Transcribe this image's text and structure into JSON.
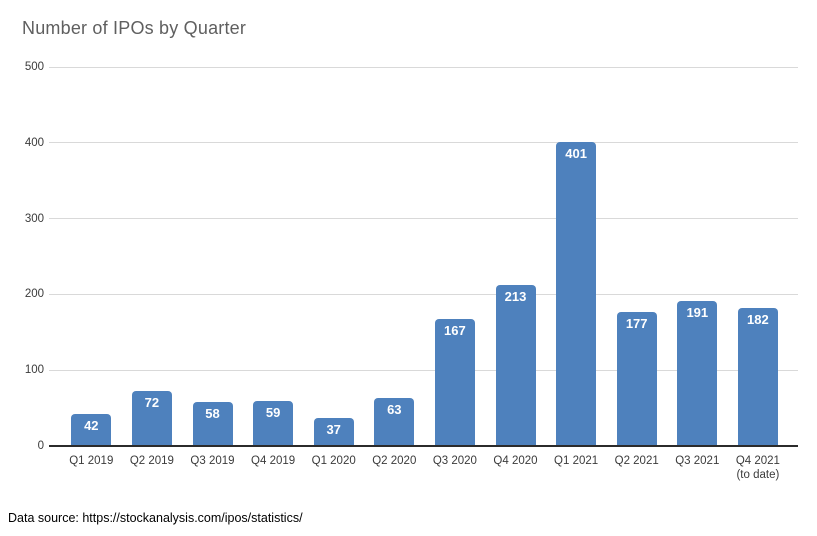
{
  "source_note": "Data source: https://stockanalysis.com/ipos/statistics/",
  "colors": {
    "bar": "#4e81bd",
    "title_text": "#5f5f5f",
    "axis_text": "#3b3b3b",
    "gridline": "#d9d9d9",
    "axis_line": "#2b2b2b",
    "value_label": "#ffffff",
    "background": "#ffffff"
  },
  "chart_data": {
    "type": "bar",
    "title": "Number of IPOs by Quarter",
    "categories": [
      "Q1 2019",
      "Q2 2019",
      "Q3 2019",
      "Q4 2019",
      "Q1 2020",
      "Q2 2020",
      "Q3 2020",
      "Q4 2020",
      "Q1 2021",
      "Q2 2021",
      "Q3 2021",
      "Q4 2021\n(to date)"
    ],
    "values": [
      42,
      72,
      58,
      59,
      37,
      63,
      167,
      213,
      401,
      177,
      191,
      182
    ],
    "yticks": [
      0,
      100,
      200,
      300,
      400,
      500
    ],
    "ylim": [
      0,
      500
    ],
    "xlabel": "",
    "ylabel": "",
    "grid": true,
    "legend": false,
    "value_label_position": "inside-top",
    "bar_color": "#4e81bd"
  }
}
